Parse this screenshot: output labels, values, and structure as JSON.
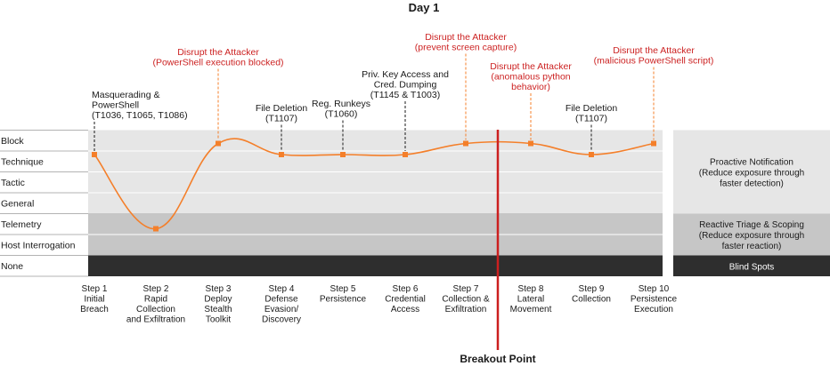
{
  "chart_data": {
    "type": "line",
    "title": "Day 1",
    "levels": [
      "Block",
      "Technique",
      "Tactic",
      "General",
      "Telemetry",
      "Host Interrogation",
      "None"
    ],
    "steps": [
      {
        "label": [
          "Step 1",
          "Initial",
          "Breach"
        ],
        "level": "Technique",
        "annotation": [
          "Masquerading &",
          "PowerShell",
          "(T1036, T1065, T1086)"
        ],
        "annotation_color": "black"
      },
      {
        "label": [
          "Step 2",
          "Rapid",
          "Collection",
          "and Exfiltration"
        ],
        "level": "Telemetry",
        "annotation": [],
        "annotation_color": "black"
      },
      {
        "label": [
          "Step 3",
          "Deploy",
          "Stealth",
          "Toolkit"
        ],
        "level": "Block",
        "annotation": [
          "Disrupt the Attacker",
          "(PowerShell execution blocked)"
        ],
        "annotation_color": "red"
      },
      {
        "label": [
          "Step 4",
          "Defense",
          "Evasion/",
          "Discovery"
        ],
        "level": "Technique",
        "annotation": [
          "File Deletion",
          "(T1107)"
        ],
        "annotation_color": "black"
      },
      {
        "label": [
          "Step 5",
          "Persistence"
        ],
        "level": "Technique",
        "annotation": [
          "Reg. Runkeys",
          "(T1060)"
        ],
        "annotation_color": "black"
      },
      {
        "label": [
          "Step 6",
          "Credential",
          "Access"
        ],
        "level": "Technique",
        "annotation": [
          "Priv. Key Access and",
          "Cred. Dumping",
          "(T1145 & T1003)"
        ],
        "annotation_color": "black"
      },
      {
        "label": [
          "Step 7",
          "Collection &",
          "Exfiltration"
        ],
        "level": "Block",
        "annotation": [
          "Disrupt the Attacker",
          "(prevent screen capture)"
        ],
        "annotation_color": "red"
      },
      {
        "label": [
          "Step 8",
          "Lateral",
          "Movement"
        ],
        "level": "Block",
        "annotation": [
          "Disrupt the Attacker",
          "(anomalous python",
          "behavior)"
        ],
        "annotation_color": "red"
      },
      {
        "label": [
          "Step 9",
          "Collection"
        ],
        "level": "Technique",
        "annotation": [
          "File Deletion",
          "(T1107)"
        ],
        "annotation_color": "black"
      },
      {
        "label": [
          "Step 10",
          "Persistence",
          "Execution"
        ],
        "level": "Block",
        "annotation": [
          "Disrupt the Attacker",
          "(malicious PowerShell script)"
        ],
        "annotation_color": "red"
      }
    ],
    "breakout_label": "Breakout Point",
    "bands": [
      {
        "lines": [
          "Proactive Notification",
          "(Reduce exposure through",
          "faster detection)"
        ],
        "levels": [
          "Block",
          "Technique",
          "Tactic",
          "General"
        ],
        "color": "#e6e6e6",
        "text_color": "#1a1a1a"
      },
      {
        "lines": [
          "Reactive Triage & Scoping",
          "(Reduce exposure through",
          "faster reaction)"
        ],
        "levels": [
          "Telemetry",
          "Host Interrogation"
        ],
        "color": "#c6c6c6",
        "text_color": "#1a1a1a"
      },
      {
        "lines": [
          "Blind Spots"
        ],
        "levels": [
          "None"
        ],
        "color": "#2e2e2e",
        "text_color": "#ffffff"
      }
    ],
    "colors": {
      "line": "#f47f2a",
      "accent": "#cc1f1f",
      "annotation_red": "#cc2222"
    }
  }
}
